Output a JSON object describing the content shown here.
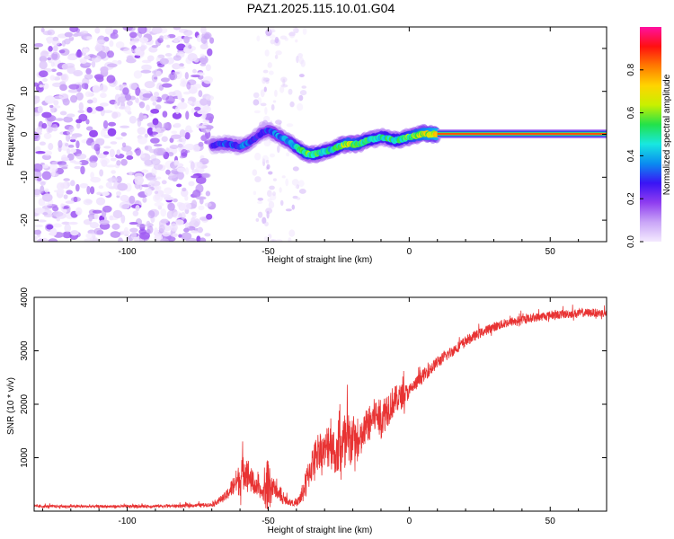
{
  "title": "PAZ1.2025.115.10.01.G04",
  "colors": {
    "snr_line": "#e83333",
    "axes": "#000000",
    "background": "#ffffff"
  },
  "chart_data": [
    {
      "type": "heatmap",
      "name": "spectrogram",
      "xlabel": "Height of straight line (km)",
      "ylabel": "Frequency (Hz)",
      "xlim": [
        -133,
        70
      ],
      "ylim": [
        -25,
        25
      ],
      "x_ticks": [
        -100,
        -50,
        0,
        50
      ],
      "y_ticks": [
        -20,
        -10,
        0,
        10,
        20
      ],
      "colorbar": {
        "label": "Normalized spectral amplitude",
        "range": [
          0,
          1
        ],
        "ticks": [
          0.0,
          0.2,
          0.4,
          0.6,
          0.8
        ],
        "stops": [
          "#f4eaff",
          "#c9a5f7",
          "#8f3df0",
          "#3a14f5",
          "#0a8cf0",
          "#18e8e0",
          "#22e24a",
          "#c8f000",
          "#ffd400",
          "#ff7a00",
          "#ff1010",
          "#ff10a0"
        ],
        "position": "right"
      },
      "ridge": {
        "x": [
          -70,
          -65,
          -60,
          -57,
          -55,
          -52,
          -50,
          -47,
          -45,
          -42,
          -40,
          -37,
          -35,
          -32,
          -30,
          -27,
          -25,
          -22,
          -20,
          -17,
          -15,
          -12,
          -10,
          -7,
          -5,
          -2,
          0,
          3,
          5,
          8,
          10,
          70
        ],
        "y": [
          -2.5,
          -2.2,
          -2.8,
          -2.0,
          -1.0,
          0.5,
          1.0,
          0,
          -0.8,
          -2.0,
          -3.0,
          -4.3,
          -4.8,
          -4.4,
          -4.0,
          -3.5,
          -2.8,
          -2.2,
          -2.4,
          -2.0,
          -1.5,
          -1.0,
          -0.6,
          -1.0,
          -1.4,
          -1.0,
          -0.6,
          -0.2,
          0.2,
          0.0,
          0.1,
          0.1
        ],
        "amplitude": [
          0.25,
          0.3,
          0.3,
          0.35,
          0.25,
          0.3,
          0.3,
          0.35,
          0.35,
          0.4,
          0.45,
          0.55,
          0.55,
          0.5,
          0.45,
          0.45,
          0.5,
          0.6,
          0.6,
          0.55,
          0.5,
          0.5,
          0.45,
          0.5,
          0.5,
          0.5,
          0.55,
          0.6,
          0.65,
          0.7,
          0.75,
          0.78
        ]
      },
      "noise_region_x": [
        -133,
        -70
      ]
    },
    {
      "type": "line",
      "name": "snr",
      "xlabel": "Height of straight line (km)",
      "ylabel": "SNR (10 * v/v)",
      "xlim": [
        -133,
        70
      ],
      "ylim": [
        0,
        4000
      ],
      "x_ticks": [
        -100,
        -50,
        0,
        50
      ],
      "y_ticks": [
        1000,
        2000,
        3000,
        4000
      ],
      "envelope": {
        "x": [
          -133,
          -100,
          -80,
          -70,
          -65,
          -62,
          -60,
          -58,
          -56,
          -54,
          -52,
          -50,
          -48,
          -45,
          -42,
          -40,
          -38,
          -35,
          -32,
          -30,
          -28,
          -26,
          -24,
          -22,
          -20,
          -18,
          -15,
          -12,
          -10,
          -8,
          -5,
          -2,
          0,
          5,
          10,
          15,
          20,
          25,
          30,
          35,
          40,
          45,
          50,
          55,
          60,
          65,
          70
        ],
        "base": [
          80,
          80,
          90,
          110,
          250,
          450,
          500,
          700,
          500,
          380,
          300,
          320,
          400,
          200,
          150,
          120,
          250,
          700,
          1100,
          1000,
          1200,
          900,
          1100,
          900,
          1300,
          1100,
          1500,
          1700,
          1600,
          1800,
          2000,
          2100,
          2200,
          2500,
          2750,
          2950,
          3150,
          3300,
          3420,
          3500,
          3560,
          3600,
          3640,
          3660,
          3680,
          3690,
          3680
        ],
        "spread": [
          60,
          60,
          70,
          80,
          200,
          450,
          700,
          750,
          550,
          350,
          250,
          1300,
          350,
          200,
          120,
          100,
          400,
          700,
          750,
          700,
          1300,
          700,
          1200,
          1800,
          900,
          800,
          700,
          750,
          800,
          800,
          600,
          500,
          300,
          280,
          250,
          230,
          220,
          200,
          200,
          190,
          180,
          180,
          180,
          180,
          180,
          170,
          170
        ]
      }
    }
  ]
}
